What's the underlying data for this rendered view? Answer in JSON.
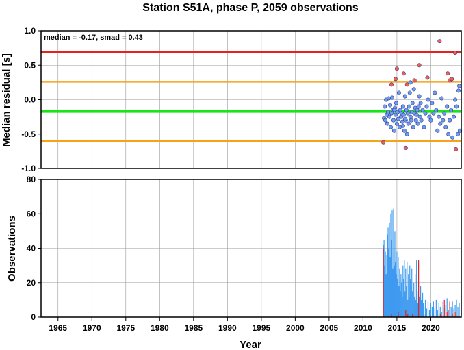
{
  "chart_data": [
    {
      "type": "scatter",
      "title": "Station S51A, phase P, 2059 observations",
      "ylabel": "Median residual [s]",
      "annotation": "median = -0.17, smad = 0.43",
      "xlim": [
        1962.5,
        2024.5
      ],
      "ylim": [
        -1.0,
        1.0
      ],
      "yticks": [
        "-1.0",
        "-0.5",
        "0.0",
        "0.5",
        "1.0"
      ],
      "ytick_values": [
        -1.0,
        -0.5,
        0.0,
        0.5,
        1.0
      ],
      "grid": true,
      "reference_lines": [
        {
          "value": 0.69,
          "color": "#e8201c"
        },
        {
          "value": 0.26,
          "color": "#f8a21a"
        },
        {
          "value": -0.17,
          "color": "#19e319"
        },
        {
          "value": -0.6,
          "color": "#f8a21a"
        }
      ],
      "series": [
        {
          "color": "#6f9bf2",
          "points": [
            [
              2013.1,
              -0.27
            ],
            [
              2013.2,
              -0.1
            ],
            [
              2013.3,
              -0.3
            ],
            [
              2013.4,
              0.0
            ],
            [
              2013.5,
              -0.22
            ],
            [
              2013.6,
              -0.35
            ],
            [
              2013.7,
              -0.18
            ],
            [
              2013.8,
              0.02
            ],
            [
              2013.9,
              -0.25
            ],
            [
              2014.0,
              -0.08
            ],
            [
              2014.1,
              -0.4
            ],
            [
              2014.2,
              -0.2
            ],
            [
              2014.3,
              0.03
            ],
            [
              2014.4,
              -0.15
            ],
            [
              2014.5,
              -0.3
            ],
            [
              2014.6,
              -0.45
            ],
            [
              2014.7,
              -0.12
            ],
            [
              2014.8,
              -0.22
            ],
            [
              2014.9,
              -0.05
            ],
            [
              2015.0,
              -0.35
            ],
            [
              2015.1,
              -0.18
            ],
            [
              2015.2,
              -0.28
            ],
            [
              2015.3,
              0.1
            ],
            [
              2015.4,
              -0.4
            ],
            [
              2015.5,
              -0.15
            ],
            [
              2015.6,
              -0.25
            ],
            [
              2015.7,
              -0.2
            ],
            [
              2015.8,
              -0.32
            ],
            [
              2015.9,
              -0.1
            ],
            [
              2016.0,
              -0.22
            ],
            [
              2016.1,
              -0.45
            ],
            [
              2016.2,
              0.05
            ],
            [
              2016.3,
              -0.3
            ],
            [
              2016.4,
              -0.15
            ],
            [
              2016.5,
              -0.5
            ],
            [
              2016.6,
              -0.2
            ],
            [
              2016.7,
              -0.35
            ],
            [
              2016.8,
              -0.1
            ],
            [
              2016.9,
              0.1
            ],
            [
              2017.0,
              -0.25
            ],
            [
              2017.1,
              -0.3
            ],
            [
              2017.2,
              -0.18
            ],
            [
              2017.3,
              -0.05
            ],
            [
              2017.4,
              -0.4
            ],
            [
              2017.5,
              0.15
            ],
            [
              2017.6,
              -0.2
            ],
            [
              2017.7,
              -0.12
            ],
            [
              2017.8,
              -0.3
            ],
            [
              2017.9,
              -0.22
            ],
            [
              2018.0,
              -0.15
            ],
            [
              2018.1,
              -0.35
            ],
            [
              2018.2,
              -0.1
            ],
            [
              2018.3,
              0.05
            ],
            [
              2018.4,
              -0.25
            ],
            [
              2018.5,
              -0.05
            ],
            [
              2018.6,
              -0.3
            ],
            [
              2018.8,
              -0.15
            ],
            [
              2019.0,
              -0.4
            ],
            [
              2019.2,
              -0.2
            ],
            [
              2019.4,
              -0.1
            ],
            [
              2019.6,
              0.0
            ],
            [
              2019.8,
              -0.25
            ],
            [
              2020.0,
              -0.3
            ],
            [
              2020.2,
              -0.05
            ],
            [
              2020.4,
              -0.2
            ],
            [
              2020.6,
              0.1
            ],
            [
              2020.8,
              -0.15
            ],
            [
              2021.0,
              -0.45
            ],
            [
              2021.2,
              -0.25
            ],
            [
              2021.4,
              -0.35
            ],
            [
              2021.6,
              0.02
            ],
            [
              2021.8,
              -0.3
            ],
            [
              2022.0,
              -0.2
            ],
            [
              2022.2,
              -0.4
            ],
            [
              2022.4,
              -0.1
            ],
            [
              2022.6,
              -0.5
            ],
            [
              2022.8,
              -0.3
            ],
            [
              2023.0,
              -0.15
            ],
            [
              2023.2,
              -0.55
            ],
            [
              2023.4,
              -0.25
            ],
            [
              2023.6,
              0.0
            ],
            [
              2023.8,
              -0.1
            ],
            [
              2024.0,
              -0.5
            ],
            [
              2024.1,
              0.13
            ],
            [
              2024.2,
              0.2
            ],
            [
              2024.3,
              -0.45
            ],
            [
              2016.2,
              -0.28
            ],
            [
              2017.0,
              0.25
            ],
            [
              2014.6,
              -0.15
            ],
            [
              2015.9,
              -0.38
            ]
          ]
        },
        {
          "color": "#f25f4f",
          "points": [
            [
              2013.0,
              -0.62
            ],
            [
              2014.2,
              0.22
            ],
            [
              2014.8,
              0.3
            ],
            [
              2015.0,
              0.45
            ],
            [
              2016.0,
              0.38
            ],
            [
              2016.5,
              0.22
            ],
            [
              2016.3,
              -0.7
            ],
            [
              2017.6,
              0.28
            ],
            [
              2018.3,
              0.5
            ],
            [
              2019.5,
              0.32
            ],
            [
              2021.3,
              0.85
            ],
            [
              2022.5,
              0.38
            ],
            [
              2022.8,
              0.28
            ],
            [
              2023.1,
              0.3
            ],
            [
              2023.6,
              0.68
            ],
            [
              2023.7,
              -0.72
            ]
          ]
        }
      ]
    },
    {
      "type": "bar",
      "ylabel": "Observations",
      "xlabel": "Year",
      "xlim": [
        1962.5,
        2024.5
      ],
      "ylim": [
        0,
        80
      ],
      "yticks": [
        "0",
        "20",
        "40",
        "60",
        "80"
      ],
      "ytick_values": [
        0,
        20,
        40,
        60,
        80
      ],
      "xticks": [
        "1965",
        "1970",
        "1975",
        "1980",
        "1985",
        "1990",
        "1995",
        "2000",
        "2005",
        "2010",
        "2015",
        "2020"
      ],
      "xtick_values": [
        1965,
        1970,
        1975,
        1980,
        1985,
        1990,
        1995,
        2000,
        2005,
        2010,
        2015,
        2020
      ],
      "grid": true,
      "series": [
        {
          "color": "#3f9bf0",
          "points": [
            [
              2013.0,
              42
            ],
            [
              2013.1,
              45
            ],
            [
              2013.2,
              30
            ],
            [
              2013.3,
              38
            ],
            [
              2013.4,
              25
            ],
            [
              2013.5,
              36
            ],
            [
              2013.6,
              48
            ],
            [
              2013.7,
              52
            ],
            [
              2013.8,
              40
            ],
            [
              2013.9,
              55
            ],
            [
              2014.0,
              35
            ],
            [
              2014.1,
              60
            ],
            [
              2014.2,
              45
            ],
            [
              2014.3,
              62
            ],
            [
              2014.4,
              28
            ],
            [
              2014.5,
              63
            ],
            [
              2014.6,
              30
            ],
            [
              2014.7,
              50
            ],
            [
              2014.8,
              32
            ],
            [
              2014.9,
              25
            ],
            [
              2015.0,
              38
            ],
            [
              2015.1,
              22
            ],
            [
              2015.2,
              35
            ],
            [
              2015.3,
              18
            ],
            [
              2015.4,
              28
            ],
            [
              2015.5,
              15
            ],
            [
              2015.6,
              25
            ],
            [
              2015.7,
              20
            ],
            [
              2015.8,
              12
            ],
            [
              2015.9,
              30
            ],
            [
              2016.0,
              22
            ],
            [
              2016.1,
              33
            ],
            [
              2016.2,
              15
            ],
            [
              2016.3,
              28
            ],
            [
              2016.4,
              18
            ],
            [
              2016.5,
              32
            ],
            [
              2016.6,
              10
            ],
            [
              2016.7,
              25
            ],
            [
              2016.8,
              12
            ],
            [
              2016.9,
              30
            ],
            [
              2017.0,
              22
            ],
            [
              2017.1,
              18
            ],
            [
              2017.2,
              28
            ],
            [
              2017.3,
              15
            ],
            [
              2017.4,
              8
            ],
            [
              2017.5,
              20
            ],
            [
              2017.6,
              12
            ],
            [
              2017.7,
              25
            ],
            [
              2017.8,
              10
            ],
            [
              2017.9,
              33
            ],
            [
              2018.0,
              15
            ],
            [
              2018.1,
              8
            ],
            [
              2018.2,
              20
            ],
            [
              2018.3,
              12
            ],
            [
              2018.4,
              6
            ],
            [
              2018.5,
              18
            ],
            [
              2018.6,
              10
            ],
            [
              2018.7,
              5
            ],
            [
              2018.8,
              14
            ],
            [
              2018.9,
              8
            ],
            [
              2019.0,
              6
            ],
            [
              2019.2,
              10
            ],
            [
              2019.4,
              5
            ],
            [
              2019.6,
              9
            ],
            [
              2019.8,
              4
            ],
            [
              2020.0,
              8
            ],
            [
              2020.2,
              6
            ],
            [
              2020.4,
              9
            ],
            [
              2020.6,
              5
            ],
            [
              2020.8,
              10
            ],
            [
              2021.0,
              4
            ],
            [
              2021.2,
              8
            ],
            [
              2021.4,
              6
            ],
            [
              2021.6,
              3
            ],
            [
              2021.8,
              9
            ],
            [
              2022.0,
              5
            ],
            [
              2022.2,
              7
            ],
            [
              2022.4,
              11
            ],
            [
              2022.6,
              4
            ],
            [
              2022.8,
              8
            ],
            [
              2023.0,
              6
            ],
            [
              2023.2,
              9
            ],
            [
              2023.4,
              5
            ],
            [
              2023.6,
              7
            ],
            [
              2023.8,
              10
            ],
            [
              2024.0,
              6
            ],
            [
              2024.2,
              8
            ]
          ]
        },
        {
          "color": "#e8201c",
          "points": [
            [
              2013.0,
              40
            ],
            [
              2014.2,
              2
            ],
            [
              2015.2,
              3
            ],
            [
              2016.3,
              4
            ],
            [
              2016.6,
              2
            ],
            [
              2017.3,
              2
            ],
            [
              2018.2,
              33
            ],
            [
              2019.0,
              2
            ],
            [
              2020.6,
              1
            ],
            [
              2021.4,
              2
            ],
            [
              2022.0,
              10
            ],
            [
              2022.4,
              3
            ],
            [
              2022.8,
              9
            ],
            [
              2023.2,
              2
            ],
            [
              2023.6,
              3
            ]
          ]
        }
      ]
    }
  ]
}
